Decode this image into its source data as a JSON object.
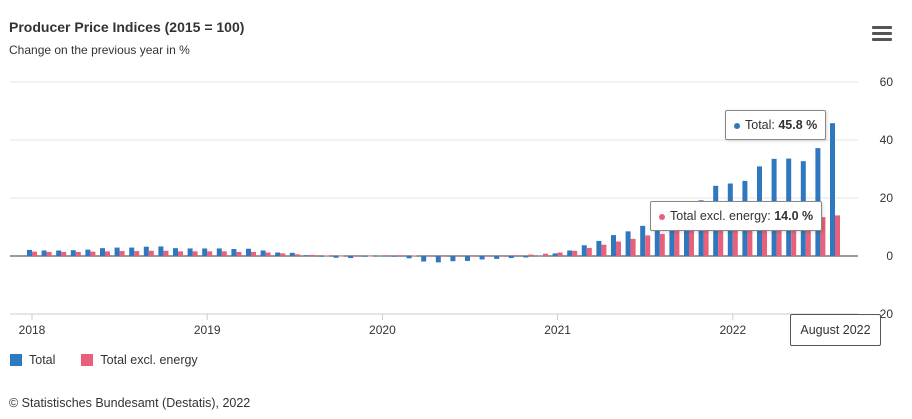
{
  "header": {
    "title": "Producer Price Indices (2015 = 100)",
    "subtitle": "Change on the previous year in %"
  },
  "icons": {
    "menu": "hamburger-menu-icon",
    "logo": "destatis-logo-icon"
  },
  "legend": {
    "items": [
      {
        "label": "Total",
        "color": "#2f78bd"
      },
      {
        "label": "Total excl. energy",
        "color": "#e8607a"
      }
    ]
  },
  "tooltips": {
    "total": {
      "label": "Total: ",
      "value": "45.8 %"
    },
    "excl": {
      "label": "Total excl. energy: ",
      "value": "14.0 %"
    },
    "x_label": "August 2022"
  },
  "credits": {
    "text": "© Statistisches Bundesamt (Destatis), 2022"
  },
  "chart_data": {
    "type": "bar",
    "title": "Producer Price Indices (2015 = 100)",
    "subtitle": "Change on the previous year in %",
    "ylim": [
      -20,
      60
    ],
    "y_ticks": [
      -20,
      0,
      20,
      40,
      60
    ],
    "x_tick_labels": [
      "2018",
      "2019",
      "2020",
      "2021",
      "2022"
    ],
    "grid": true,
    "legend_position": "bottom-left",
    "categories": [
      "2018-01",
      "2018-02",
      "2018-03",
      "2018-04",
      "2018-05",
      "2018-06",
      "2018-07",
      "2018-08",
      "2018-09",
      "2018-10",
      "2018-11",
      "2018-12",
      "2019-01",
      "2019-02",
      "2019-03",
      "2019-04",
      "2019-05",
      "2019-06",
      "2019-07",
      "2019-08",
      "2019-09",
      "2019-10",
      "2019-11",
      "2019-12",
      "2020-01",
      "2020-02",
      "2020-03",
      "2020-04",
      "2020-05",
      "2020-06",
      "2020-07",
      "2020-08",
      "2020-09",
      "2020-10",
      "2020-11",
      "2020-12",
      "2021-01",
      "2021-02",
      "2021-03",
      "2021-04",
      "2021-05",
      "2021-06",
      "2021-07",
      "2021-08",
      "2021-09",
      "2021-10",
      "2021-11",
      "2021-12",
      "2022-01",
      "2022-02",
      "2022-03",
      "2022-04",
      "2022-05",
      "2022-06",
      "2022-07",
      "2022-08"
    ],
    "series": [
      {
        "name": "Total",
        "color": "#2f78bd",
        "values": [
          2.1,
          1.9,
          1.9,
          2.0,
          2.2,
          2.7,
          2.9,
          2.9,
          3.2,
          3.3,
          2.7,
          2.6,
          2.6,
          2.6,
          2.4,
          2.5,
          1.9,
          1.2,
          1.1,
          0.3,
          -0.1,
          -0.6,
          -0.7,
          -0.2,
          0.2,
          -0.1,
          -0.8,
          -1.9,
          -2.2,
          -1.8,
          -1.7,
          -1.2,
          -1.0,
          -0.7,
          -0.5,
          0.2,
          0.9,
          1.9,
          3.7,
          5.2,
          7.2,
          8.5,
          10.4,
          12.0,
          14.2,
          18.4,
          19.2,
          24.2,
          25.0,
          25.9,
          30.9,
          33.5,
          33.6,
          32.7,
          37.2,
          45.8
        ]
      },
      {
        "name": "Total excl. energy",
        "color": "#e8607a",
        "values": [
          1.5,
          1.4,
          1.4,
          1.4,
          1.5,
          1.6,
          1.7,
          1.7,
          1.8,
          1.8,
          1.6,
          1.6,
          1.6,
          1.6,
          1.4,
          1.4,
          1.2,
          0.9,
          0.6,
          0.4,
          0.2,
          0.1,
          0.0,
          0.1,
          0.3,
          0.3,
          0.2,
          0.0,
          -0.1,
          -0.2,
          -0.1,
          -0.1,
          0.0,
          0.3,
          0.5,
          0.8,
          1.2,
          1.8,
          2.8,
          3.9,
          5.0,
          5.9,
          7.1,
          7.6,
          8.6,
          9.5,
          10.1,
          10.6,
          11.0,
          11.5,
          12.5,
          13.6,
          13.9,
          13.6,
          13.4,
          14.0
        ]
      }
    ]
  }
}
